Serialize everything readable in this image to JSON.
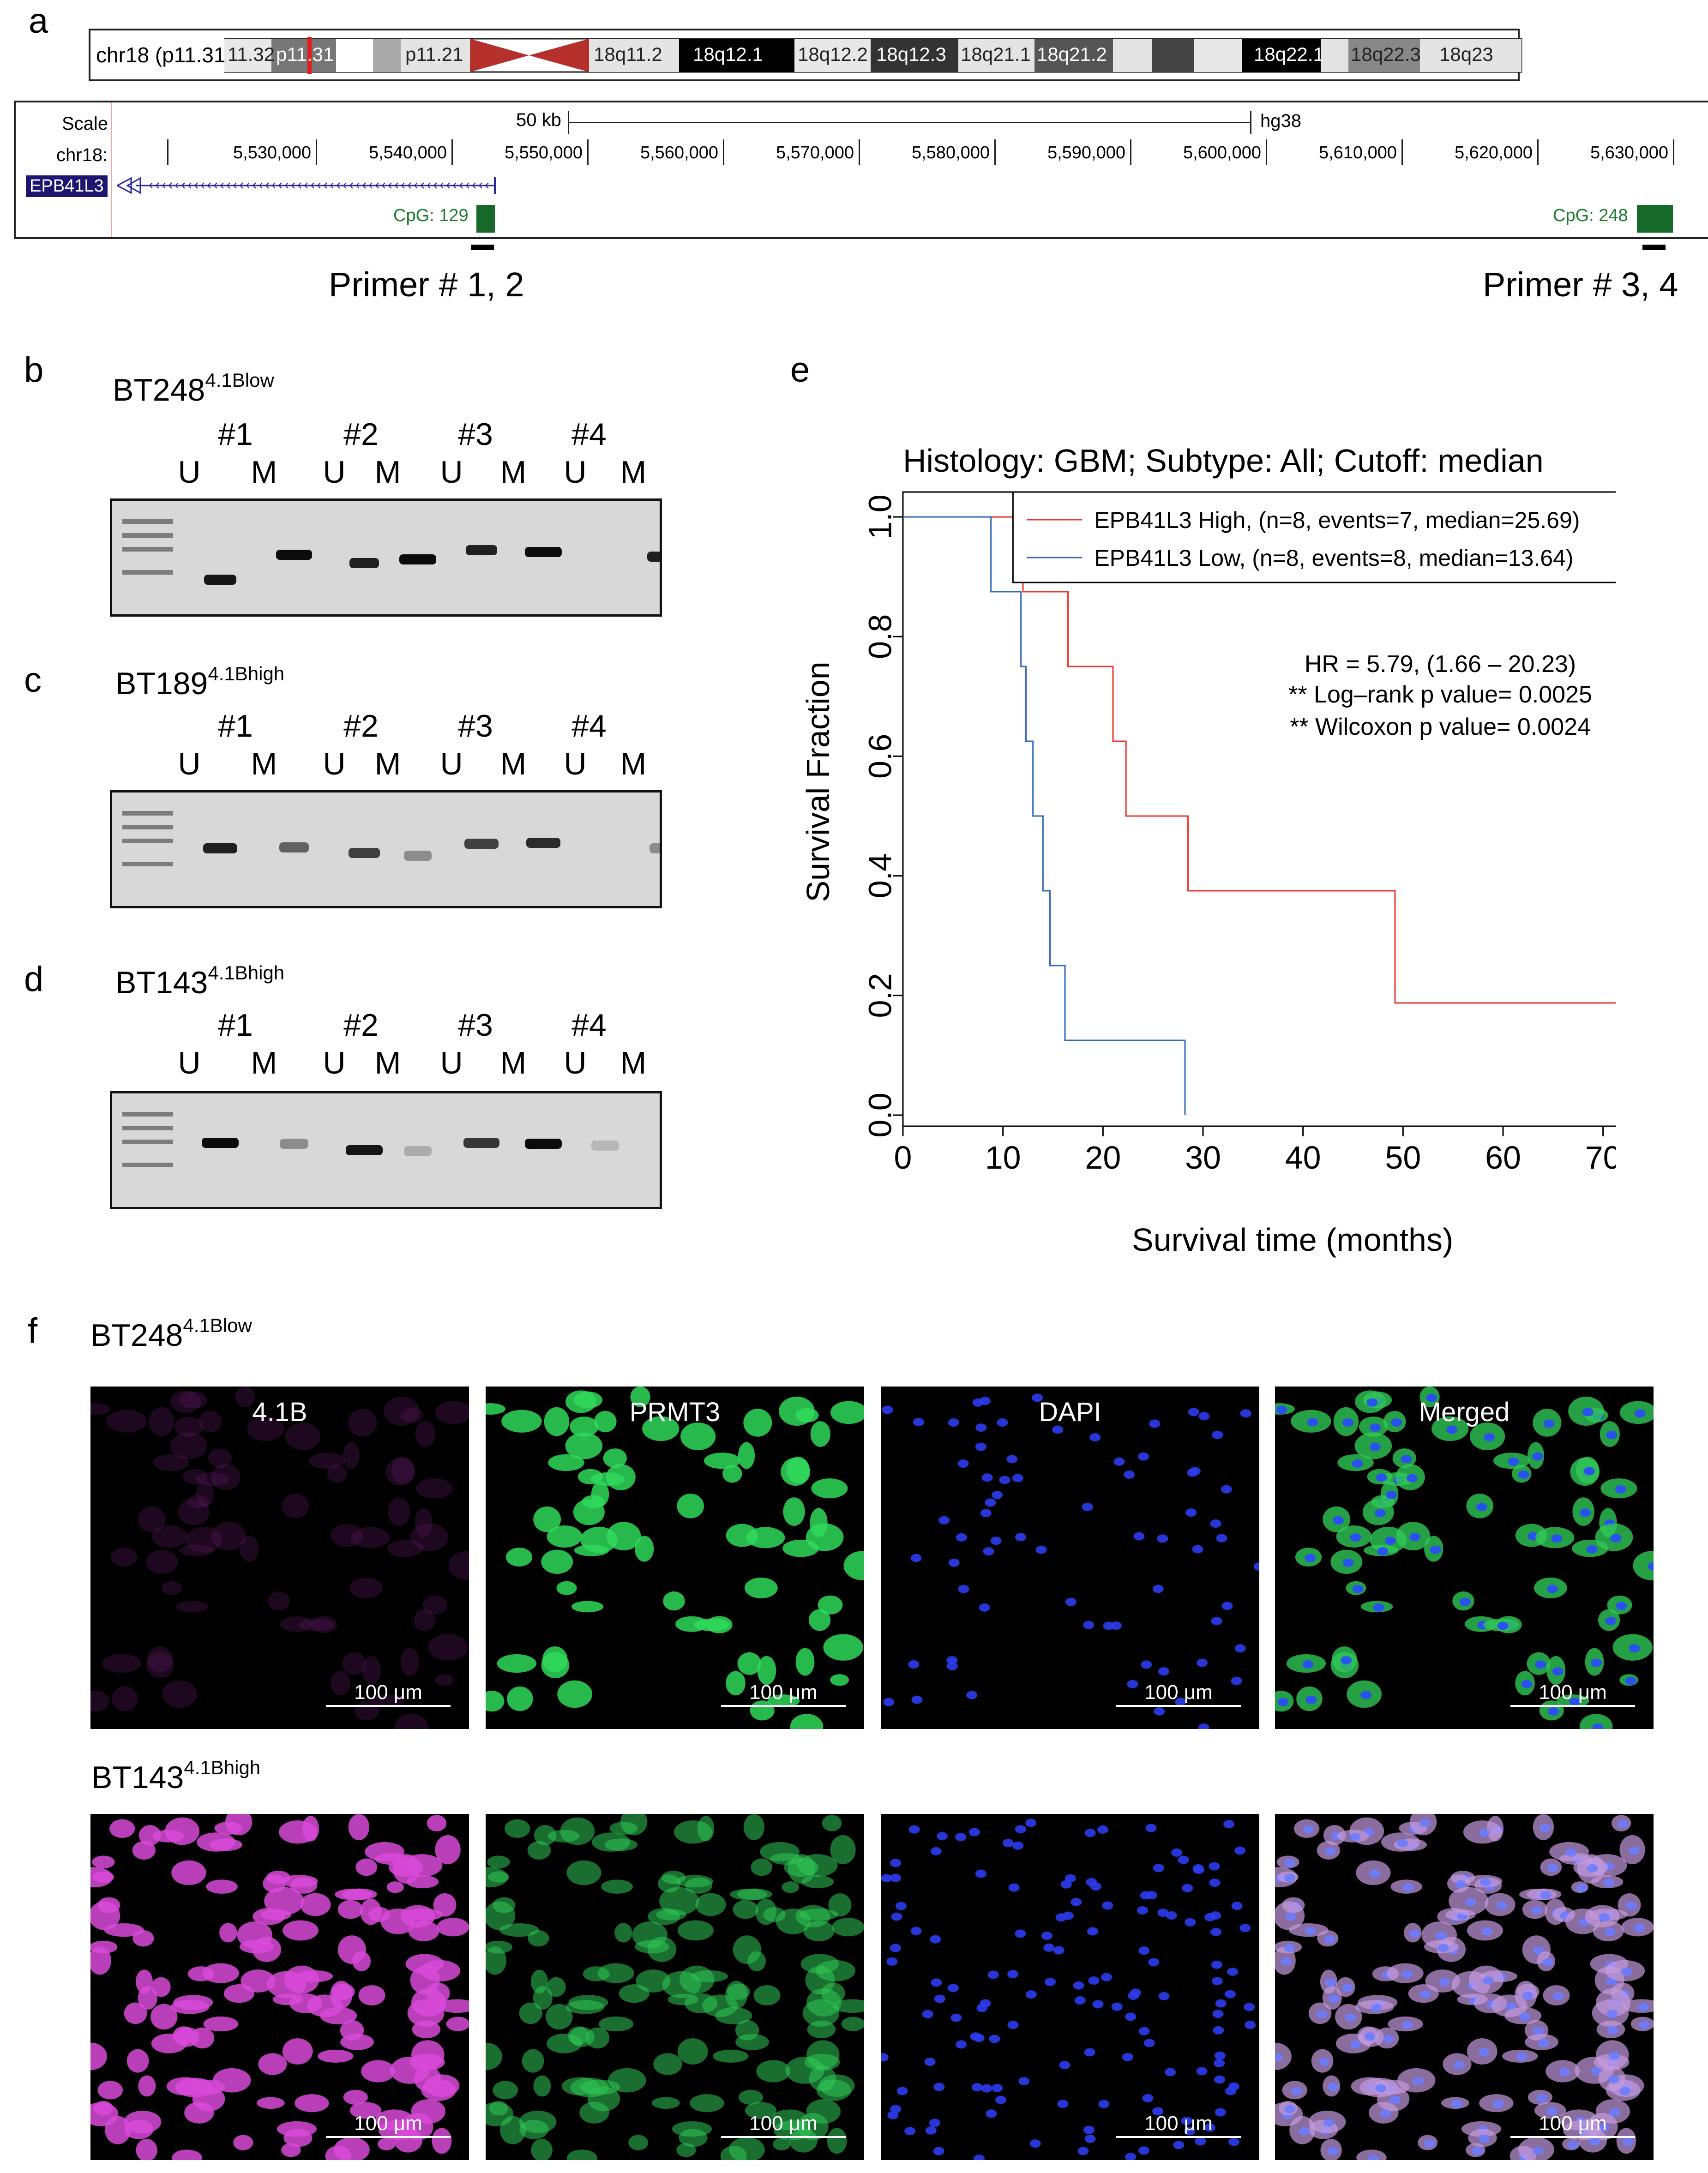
{
  "panels": {
    "a": "a",
    "b": "b",
    "c": "c",
    "d": "d",
    "e": "e",
    "f": "f"
  },
  "ideogram": {
    "label": "chr18 (p11.31)",
    "bands": [
      "11.32",
      "p11.31",
      "p11.21",
      "18q11.2",
      "18q12.1",
      "18q12.2",
      "18q12.3",
      "18q21.1",
      "18q21.2",
      "18q22.1",
      "18q22.3",
      "18q23"
    ]
  },
  "browser": {
    "scale_label": "Scale",
    "scale_value": "50 kb",
    "assembly": "hg38",
    "chrom_label": "chr18:",
    "ticks": [
      "5,530,000",
      "5,540,000",
      "5,550,000",
      "5,560,000",
      "5,570,000",
      "5,580,000",
      "5,590,000",
      "5,600,000",
      "5,610,000",
      "5,620,000",
      "5,630,000"
    ],
    "gene": "EPB41L3",
    "cpg1": "CpG: 129",
    "cpg2": "CpG: 248"
  },
  "primers": {
    "p12": "Primer # 1, 2",
    "p34": "Primer # 3, 4"
  },
  "gels": {
    "b": {
      "name": "BT248",
      "sup": "4.1Blow"
    },
    "c": {
      "name": "BT189",
      "sup": "4.1Bhigh"
    },
    "d": {
      "name": "BT143",
      "sup": "4.1Bhigh"
    },
    "pairs": [
      "#1",
      "#2",
      "#3",
      "#4"
    ],
    "u": "U",
    "m": "M"
  },
  "chart_data": {
    "type": "line",
    "title": "Histology: GBM; Subtype: All; Cutoff: median",
    "xlabel": "Survival time (months)",
    "ylabel": "Survival Fraction",
    "xlim": [
      0,
      72
    ],
    "ylim": [
      0,
      1
    ],
    "xticks": [
      "0",
      "10",
      "20",
      "30",
      "40",
      "50",
      "60",
      "70"
    ],
    "yticks": [
      "0.0",
      "0.2",
      "0.4",
      "0.6",
      "0.8",
      "1.0"
    ],
    "legend_position": "top-right",
    "series": [
      {
        "name": "EPB41L3 High, (n=8, events=7, median=25.69)",
        "color": "#e8392f",
        "steps": [
          [
            0,
            1.0
          ],
          [
            12,
            0.875
          ],
          [
            16.5,
            0.75
          ],
          [
            21,
            0.625
          ],
          [
            22.3,
            0.5
          ],
          [
            28.5,
            0.375
          ],
          [
            49.2,
            0.1875
          ],
          [
            72,
            0.0
          ]
        ]
      },
      {
        "name": "EPB41L3 Low, (n=8, events=8, median=13.64)",
        "color": "#3569b6",
        "steps": [
          [
            0,
            1.0
          ],
          [
            8.8,
            0.875
          ],
          [
            11.8,
            0.75
          ],
          [
            12.3,
            0.625
          ],
          [
            13,
            0.5
          ],
          [
            14,
            0.375
          ],
          [
            14.7,
            0.25
          ],
          [
            16.2,
            0.125
          ],
          [
            28.2,
            0.0
          ]
        ]
      }
    ],
    "annotations": [
      "HR = 5.79, (1.66 – 20.23)",
      "** Log–rank p value= 0.0025",
      "** Wilcoxon p value= 0.0024"
    ]
  },
  "micro": {
    "row1": {
      "name": "BT248",
      "sup": "4.1Blow"
    },
    "row2": {
      "name": "BT143",
      "sup": "4.1Bhigh"
    },
    "channels": [
      "4.1B",
      "PRMT3",
      "DAPI",
      "Merged"
    ],
    "scale": "100 μm"
  }
}
